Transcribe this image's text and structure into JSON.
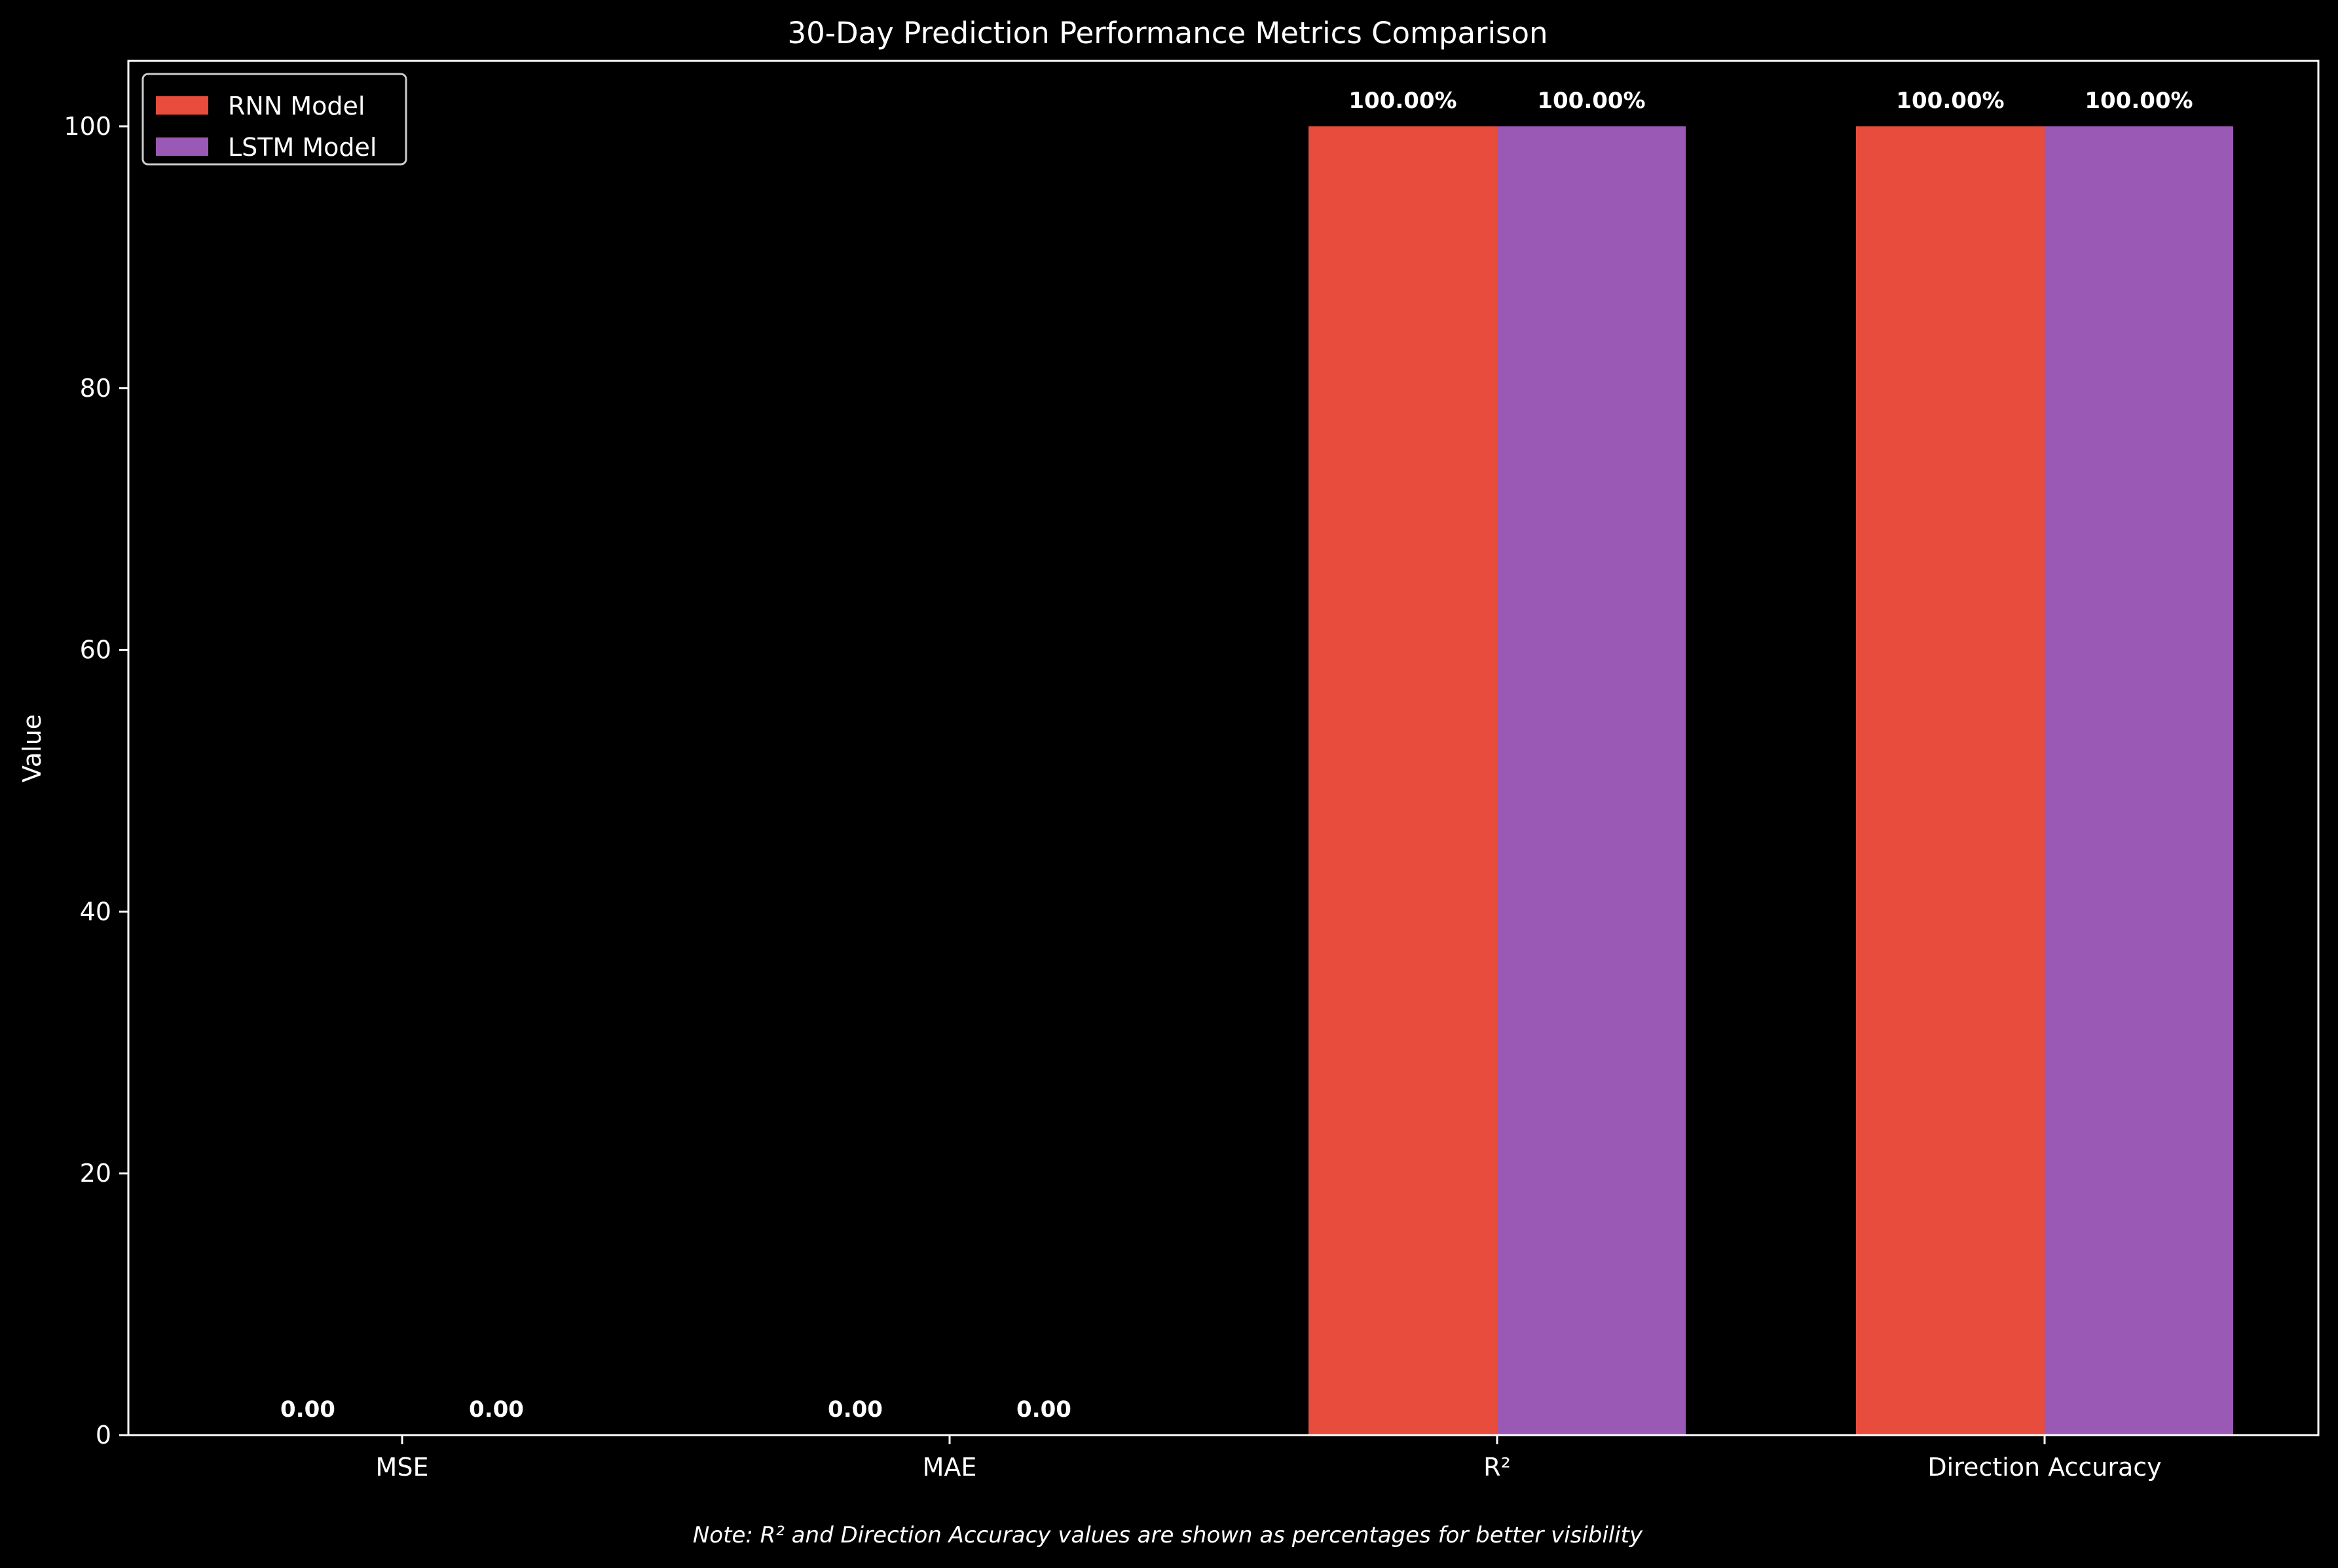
{
  "colors": {
    "background": "#000000",
    "foreground": "#ffffff",
    "rnn": "#e74c3c",
    "lstm": "#9b59b6"
  },
  "chart_data": {
    "type": "bar",
    "title": "30-Day Prediction Performance Metrics Comparison",
    "xlabel": "",
    "ylabel": "Value",
    "ylim": [
      0,
      105
    ],
    "yticks": [
      0,
      20,
      40,
      60,
      80,
      100
    ],
    "categories": [
      "MSE",
      "MAE",
      "R²",
      "Direction Accuracy"
    ],
    "series": [
      {
        "name": "RNN Model",
        "color": "#e74c3c",
        "values": [
          0,
          0,
          100,
          100
        ],
        "labels": [
          "0.00",
          "0.00",
          "100.00%",
          "100.00%"
        ]
      },
      {
        "name": "LSTM Model",
        "color": "#9b59b6",
        "values": [
          0,
          0,
          100,
          100
        ],
        "labels": [
          "0.00",
          "0.00",
          "100.00%",
          "100.00%"
        ]
      }
    ],
    "legend_position": "top-left",
    "grid": false,
    "note": "Note: R² and Direction Accuracy values are shown as percentages for better visibility"
  }
}
